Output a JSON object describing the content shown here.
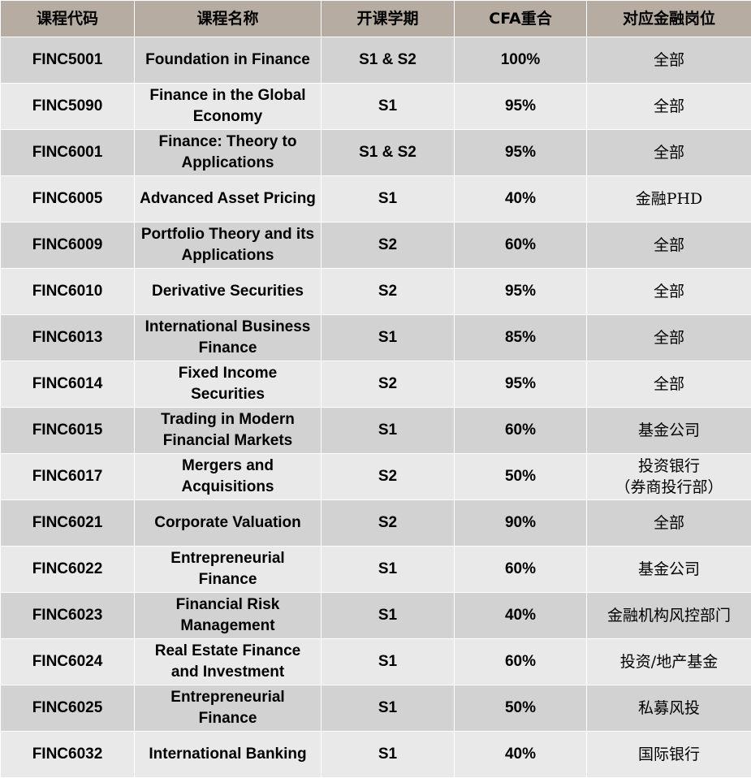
{
  "header": {
    "col_code": "课程代码",
    "col_name": "课程名称",
    "col_term": "开课学期",
    "col_cfa": "CFA重合",
    "col_role": "对应金融岗位"
  },
  "rows": [
    {
      "code": "FINC5001",
      "name": "Foundation in Finance",
      "term": "S1 & S2",
      "cfa": "100%",
      "role": "全部"
    },
    {
      "code": "FINC5090",
      "name": "Finance in the Global Economy",
      "term": "S1",
      "cfa": "95%",
      "role": "全部"
    },
    {
      "code": "FINC6001",
      "name": "Finance: Theory to Applications",
      "term": "S1 & S2",
      "cfa": "95%",
      "role": "全部"
    },
    {
      "code": "FINC6005",
      "name": "Advanced Asset Pricing",
      "term": "S1",
      "cfa": "40%",
      "role": "金融PHD"
    },
    {
      "code": "FINC6009",
      "name": "Portfolio Theory and its Applications",
      "term": "S2",
      "cfa": "60%",
      "role": "全部"
    },
    {
      "code": "FINC6010",
      "name": "Derivative Securities",
      "term": "S2",
      "cfa": "95%",
      "role": "全部"
    },
    {
      "code": "FINC6013",
      "name": "International Business Finance",
      "term": "S1",
      "cfa": "85%",
      "role": "全部"
    },
    {
      "code": "FINC6014",
      "name": "Fixed Income Securities",
      "term": "S2",
      "cfa": "95%",
      "role": "全部"
    },
    {
      "code": "FINC6015",
      "name": "Trading in Modern Financial Markets",
      "term": "S1",
      "cfa": "60%",
      "role": "基金公司"
    },
    {
      "code": "FINC6017",
      "name": "Mergers and Acquisitions",
      "term": "S2",
      "cfa": "50%",
      "role": "投资银行",
      "role2": "（券商投行部）"
    },
    {
      "code": "FINC6021",
      "name": "Corporate Valuation",
      "term": "S2",
      "cfa": "90%",
      "role": "全部"
    },
    {
      "code": "FINC6022",
      "name": "Entrepreneurial Finance",
      "term": "S1",
      "cfa": "60%",
      "role": "基金公司"
    },
    {
      "code": "FINC6023",
      "name": "Financial Risk Management",
      "term": "S1",
      "cfa": "40%",
      "role": "金融机构风控部门"
    },
    {
      "code": "FINC6024",
      "name": "Real Estate Finance and Investment",
      "term": "S1",
      "cfa": "60%",
      "role": "投资/地产基金"
    },
    {
      "code": "FINC6025",
      "name": "Entrepreneurial Finance",
      "term": "S1",
      "cfa": "50%",
      "role": "私募风投"
    },
    {
      "code": "FINC6032",
      "name": "International Banking",
      "term": "S1",
      "cfa": "40%",
      "role": "国际银行"
    }
  ],
  "colors": {
    "header_bg": "#b7aca2",
    "row_dark": "#d2d2d2",
    "row_light": "#e9e9e9"
  }
}
